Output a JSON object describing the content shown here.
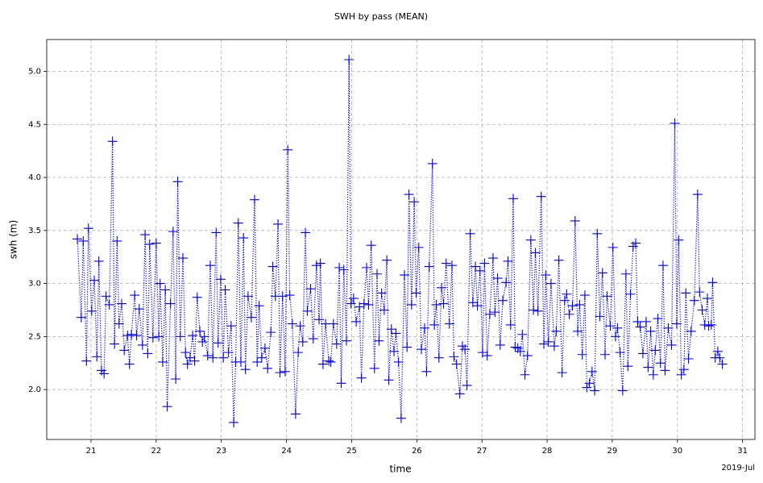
{
  "chart_data": {
    "type": "line",
    "title": "SWH by pass (MEAN)",
    "x_label": "time",
    "y_label": "swh (m)",
    "x_offset_label": "2019-Jul",
    "color": "#0000ff",
    "marker": "plus",
    "linestyle": "dotted",
    "grid": true,
    "xlim": [
      20.32,
      31.19
    ],
    "ylim": [
      1.53,
      5.3
    ],
    "xticks": [
      21,
      22,
      23,
      24,
      25,
      26,
      27,
      28,
      29,
      30,
      31
    ],
    "yticks": [
      {
        "value": 2,
        "label": "2.0"
      },
      {
        "value": 2.5,
        "label": "2.5"
      },
      {
        "value": 3,
        "label": "3.0"
      },
      {
        "value": 3.5,
        "label": "3.5"
      },
      {
        "value": 4,
        "label": "4.0"
      },
      {
        "value": 4.5,
        "label": "4.5"
      },
      {
        "value": 5,
        "label": "5.0"
      }
    ],
    "x": [
      20.79,
      20.85,
      20.88,
      20.93,
      20.96,
      21.01,
      21.05,
      21.09,
      21.12,
      21.16,
      21.2,
      21.23,
      21.28,
      21.33,
      21.36,
      21.4,
      21.43,
      21.47,
      21.51,
      21.56,
      21.59,
      21.62,
      21.67,
      21.7,
      21.74,
      21.79,
      21.83,
      21.87,
      21.9,
      21.95,
      22.0,
      22.04,
      22.06,
      22.1,
      22.14,
      22.17,
      22.22,
      22.26,
      22.3,
      22.33,
      22.37,
      22.41,
      22.45,
      22.48,
      22.52,
      22.56,
      22.59,
      22.63,
      22.67,
      22.71,
      22.74,
      22.79,
      22.83,
      22.87,
      22.92,
      22.95,
      22.99,
      23.03,
      23.06,
      23.11,
      23.15,
      23.19,
      23.22,
      23.26,
      23.3,
      23.34,
      23.37,
      23.41,
      23.46,
      23.51,
      23.55,
      23.58,
      23.62,
      23.67,
      23.71,
      23.76,
      23.79,
      23.83,
      23.87,
      23.9,
      23.94,
      23.98,
      24.02,
      24.05,
      24.09,
      24.14,
      24.18,
      24.21,
      24.25,
      24.29,
      24.32,
      24.37,
      24.41,
      24.46,
      24.5,
      24.52,
      24.56,
      24.6,
      24.65,
      24.68,
      24.72,
      24.77,
      24.81,
      24.84,
      24.88,
      24.92,
      24.96,
      24.99,
      25.03,
      25.07,
      25.12,
      25.15,
      25.19,
      25.23,
      25.26,
      25.3,
      25.35,
      25.39,
      25.42,
      25.46,
      25.5,
      25.54,
      25.57,
      25.61,
      25.65,
      25.68,
      25.72,
      25.76,
      25.81,
      25.85,
      25.88,
      25.92,
      25.96,
      25.99,
      26.03,
      26.07,
      26.12,
      26.15,
      26.19,
      26.24,
      26.27,
      26.3,
      26.34,
      26.38,
      26.41,
      26.45,
      26.5,
      26.54,
      26.57,
      26.61,
      26.66,
      26.7,
      26.74,
      26.77,
      26.82,
      26.86,
      26.9,
      26.93,
      26.97,
      27.01,
      27.04,
      27.08,
      27.12,
      27.17,
      27.2,
      27.24,
      27.28,
      27.32,
      27.37,
      27.4,
      27.44,
      27.48,
      27.51,
      27.55,
      27.59,
      27.62,
      27.66,
      27.7,
      27.75,
      27.79,
      27.82,
      27.86,
      27.91,
      27.95,
      27.98,
      28.02,
      28.06,
      28.11,
      28.14,
      28.18,
      28.23,
      28.27,
      28.3,
      28.34,
      28.39,
      28.43,
      28.47,
      28.5,
      28.54,
      28.58,
      28.61,
      28.65,
      28.69,
      28.73,
      28.77,
      28.81,
      28.85,
      28.89,
      28.92,
      28.97,
      29.01,
      29.05,
      29.08,
      29.12,
      29.16,
      29.21,
      29.24,
      29.28,
      29.32,
      29.36,
      29.39,
      29.43,
      29.47,
      29.52,
      29.55,
      29.59,
      29.63,
      29.66,
      29.7,
      29.74,
      29.78,
      29.81,
      29.86,
      29.91,
      29.96,
      29.99,
      30.02,
      30.06,
      30.1,
      30.13,
      30.17,
      30.21,
      30.26,
      30.31,
      30.34,
      30.38,
      30.42,
      30.46,
      30.48,
      30.52,
      30.54,
      30.58,
      30.62,
      30.65,
      30.69
    ],
    "values": [
      3.42,
      2.68,
      3.4,
      2.27,
      3.52,
      2.74,
      3.03,
      2.31,
      3.21,
      2.18,
      2.15,
      2.88,
      2.8,
      4.34,
      2.43,
      3.4,
      2.62,
      2.81,
      2.37,
      2.51,
      2.24,
      2.52,
      2.89,
      2.51,
      2.76,
      2.42,
      3.46,
      2.34,
      3.37,
      2.49,
      3.38,
      2.5,
      3.0,
      2.26,
      2.94,
      1.84,
      2.81,
      3.49,
      2.1,
      3.96,
      2.5,
      3.24,
      2.35,
      2.24,
      2.3,
      2.51,
      2.27,
      2.87,
      2.55,
      2.45,
      2.5,
      2.32,
      3.17,
      2.3,
      3.48,
      2.44,
      3.04,
      2.3,
      2.94,
      2.35,
      2.6,
      1.69,
      2.26,
      3.57,
      2.26,
      3.43,
      2.19,
      2.88,
      2.68,
      3.79,
      2.26,
      2.79,
      2.3,
      2.39,
      2.2,
      2.54,
      3.16,
      2.88,
      3.56,
      2.16,
      2.88,
      2.17,
      4.26,
      2.89,
      2.62,
      1.77,
      2.35,
      2.6,
      2.45,
      3.48,
      2.74,
      2.95,
      2.48,
      3.17,
      2.66,
      3.19,
      2.24,
      2.62,
      2.27,
      2.26,
      2.62,
      2.43,
      3.15,
      2.06,
      3.13,
      2.46,
      5.11,
      2.81,
      2.86,
      2.64,
      2.78,
      2.11,
      2.81,
      3.15,
      2.8,
      3.36,
      2.2,
      3.09,
      2.46,
      2.91,
      2.75,
      3.22,
      2.09,
      2.57,
      2.36,
      2.53,
      2.26,
      1.73,
      3.08,
      2.4,
      3.84,
      2.8,
      3.77,
      2.91,
      3.34,
      2.38,
      2.58,
      2.17,
      3.16,
      4.13,
      2.61,
      2.8,
      2.3,
      2.96,
      2.81,
      3.19,
      2.62,
      3.17,
      2.31,
      2.24,
      1.96,
      2.41,
      2.38,
      2.04,
      3.47,
      2.82,
      3.16,
      2.79,
      3.12,
      2.35,
      3.19,
      2.32,
      2.71,
      3.24,
      2.73,
      3.05,
      2.42,
      2.84,
      3.01,
      3.21,
      2.61,
      3.8,
      2.4,
      2.39,
      2.36,
      2.52,
      2.14,
      2.32,
      3.41,
      2.75,
      3.29,
      2.74,
      3.82,
      2.43,
      3.08,
      2.45,
      3.0,
      2.41,
      2.55,
      3.22,
      2.16,
      2.84,
      2.9,
      2.71,
      2.79,
      3.59,
      2.55,
      2.8,
      2.33,
      2.89,
      2.02,
      2.06,
      2.17,
      1.99,
      3.47,
      2.69,
      3.1,
      2.33,
      2.88,
      2.6,
      3.34,
      2.5,
      2.58,
      2.35,
      1.99,
      3.09,
      2.22,
      2.9,
      3.35,
      3.38,
      2.64,
      2.59,
      2.34,
      2.64,
      2.21,
      2.55,
      2.14,
      2.37,
      2.67,
      2.25,
      3.17,
      2.18,
      2.58,
      2.42,
      4.51,
      2.62,
      3.41,
      2.14,
      2.19,
      2.91,
      2.29,
      2.55,
      2.84,
      3.84,
      2.92,
      2.75,
      2.61,
      2.86,
      2.6,
      2.61,
      3.01,
      2.3,
      2.36,
      2.3,
      2.24
    ]
  }
}
